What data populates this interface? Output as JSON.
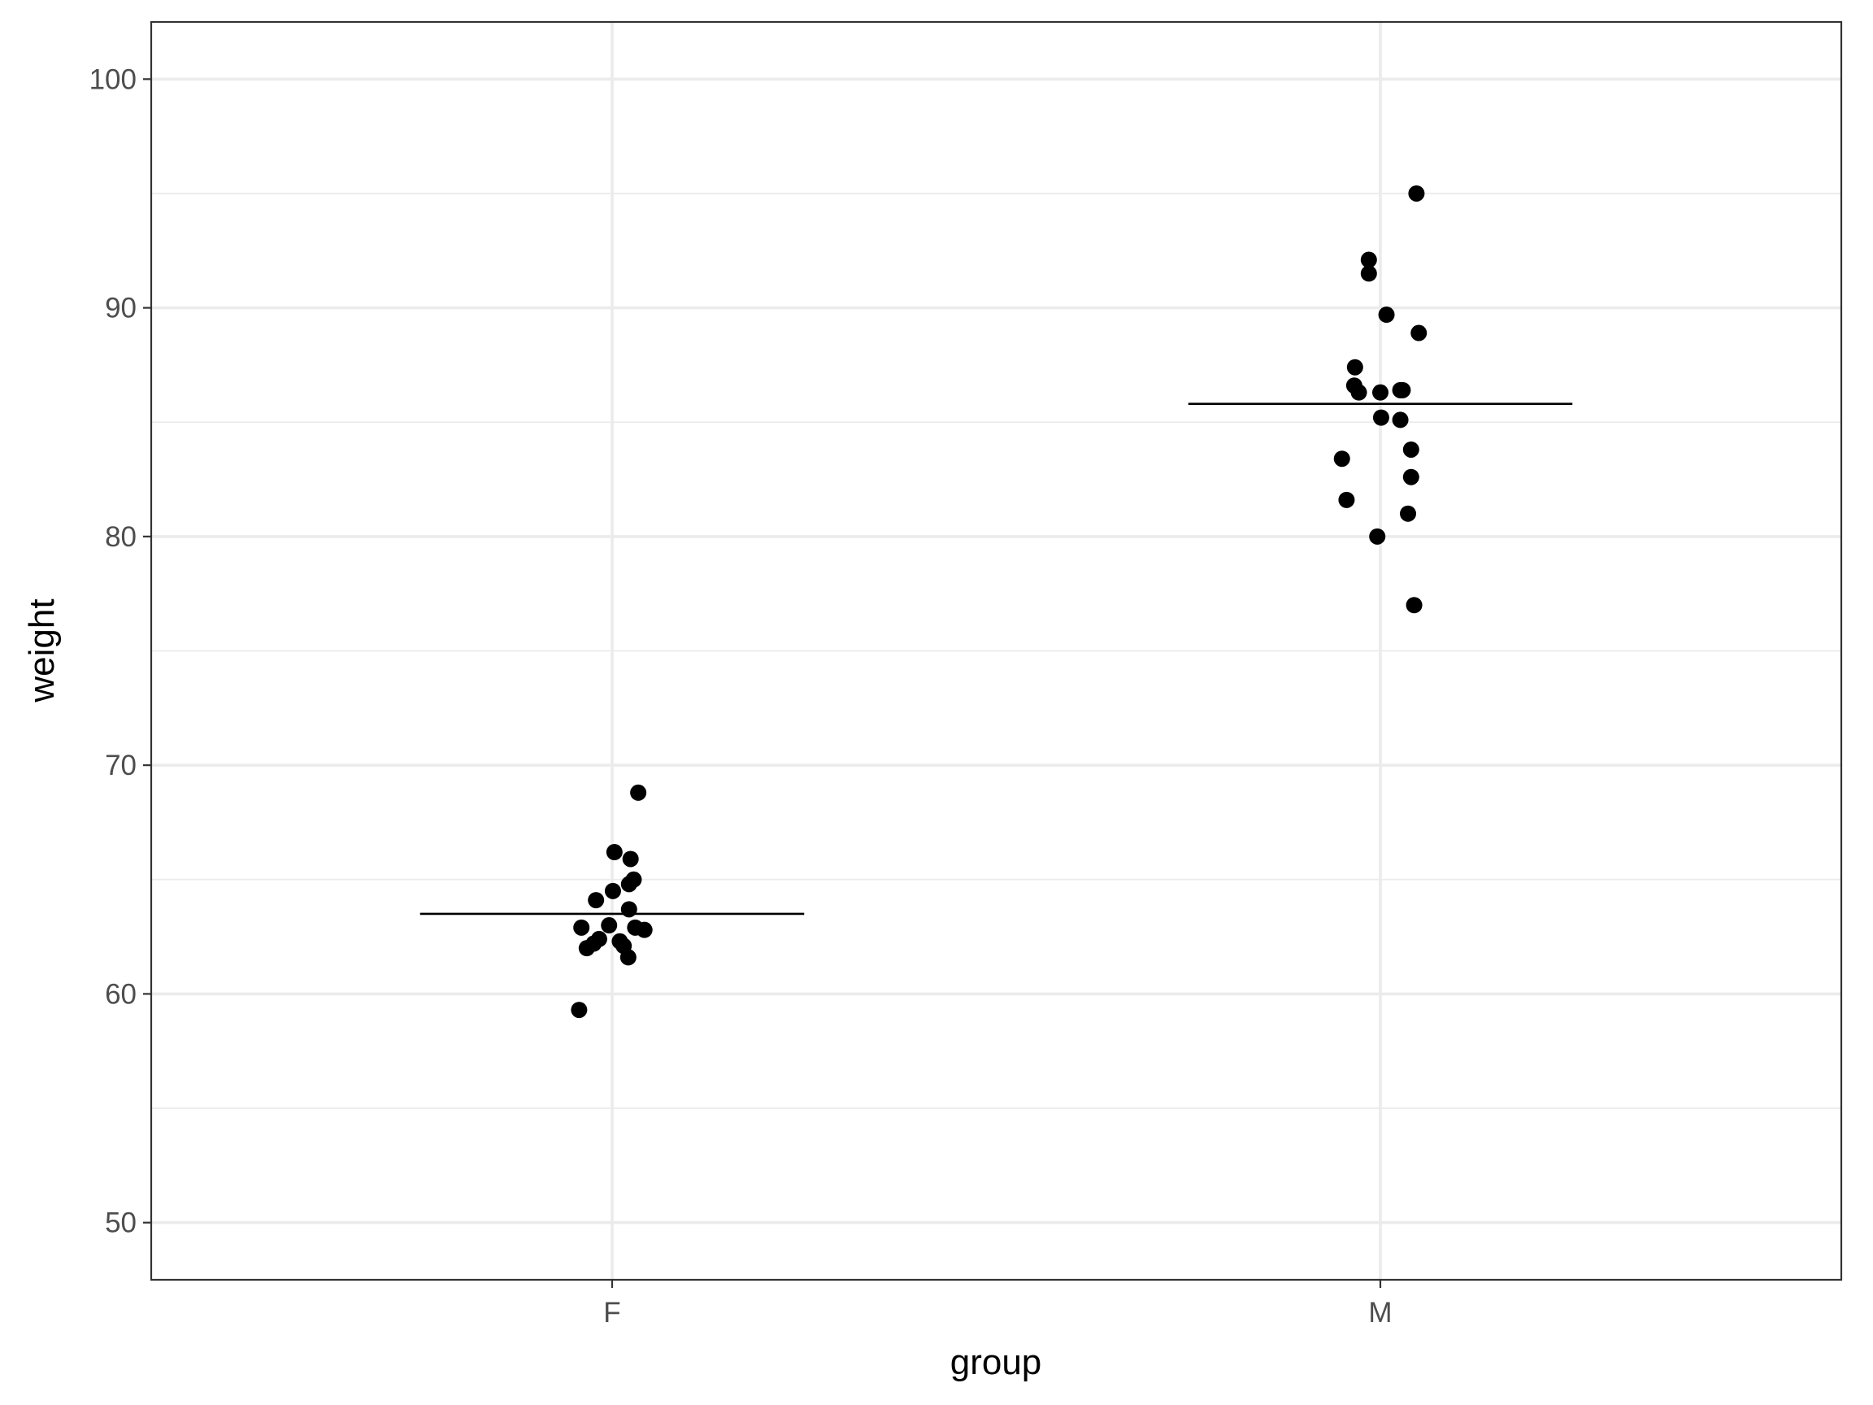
{
  "chart_data": {
    "type": "scatter",
    "title": "",
    "xlabel": "group",
    "ylabel": "weight",
    "categories": [
      "F",
      "M"
    ],
    "ylim": [
      47.5,
      102.5
    ],
    "y_ticks": [
      50,
      60,
      70,
      80,
      90,
      100
    ],
    "grid": true,
    "point_color": "#000000",
    "series": [
      {
        "category": "F",
        "mean": 63.5,
        "points": [
          {
            "x": 1.034,
            "y": 68.8
          },
          {
            "x": 1.003,
            "y": 66.2
          },
          {
            "x": 1.024,
            "y": 65.9
          },
          {
            "x": 1.028,
            "y": 65.0
          },
          {
            "x": 1.022,
            "y": 64.8
          },
          {
            "x": 1.001,
            "y": 64.5
          },
          {
            "x": 0.979,
            "y": 64.1
          },
          {
            "x": 1.022,
            "y": 63.7
          },
          {
            "x": 0.996,
            "y": 63.0
          },
          {
            "x": 0.96,
            "y": 62.9
          },
          {
            "x": 1.03,
            "y": 62.9
          },
          {
            "x": 1.042,
            "y": 62.8
          },
          {
            "x": 0.983,
            "y": 62.4
          },
          {
            "x": 1.01,
            "y": 62.3
          },
          {
            "x": 0.976,
            "y": 62.2
          },
          {
            "x": 1.015,
            "y": 62.1
          },
          {
            "x": 0.967,
            "y": 62.0
          },
          {
            "x": 1.021,
            "y": 61.6
          },
          {
            "x": 0.957,
            "y": 59.3
          }
        ]
      },
      {
        "category": "M",
        "mean": 85.8,
        "points": [
          {
            "x": 2.047,
            "y": 95.0
          },
          {
            "x": 1.985,
            "y": 92.1
          },
          {
            "x": 1.985,
            "y": 91.5
          },
          {
            "x": 2.008,
            "y": 89.7
          },
          {
            "x": 2.05,
            "y": 88.9
          },
          {
            "x": 1.967,
            "y": 87.4
          },
          {
            "x": 1.966,
            "y": 86.6
          },
          {
            "x": 1.972,
            "y": 86.3
          },
          {
            "x": 2.0,
            "y": 86.3
          },
          {
            "x": 2.026,
            "y": 86.4
          },
          {
            "x": 2.029,
            "y": 86.4
          },
          {
            "x": 2.001,
            "y": 85.2
          },
          {
            "x": 2.026,
            "y": 85.1
          },
          {
            "x": 1.95,
            "y": 83.4
          },
          {
            "x": 2.04,
            "y": 83.8
          },
          {
            "x": 2.04,
            "y": 82.6
          },
          {
            "x": 1.956,
            "y": 81.6
          },
          {
            "x": 2.036,
            "y": 81.0
          },
          {
            "x": 1.996,
            "y": 80.0
          },
          {
            "x": 2.044,
            "y": 77.0
          }
        ]
      }
    ]
  }
}
